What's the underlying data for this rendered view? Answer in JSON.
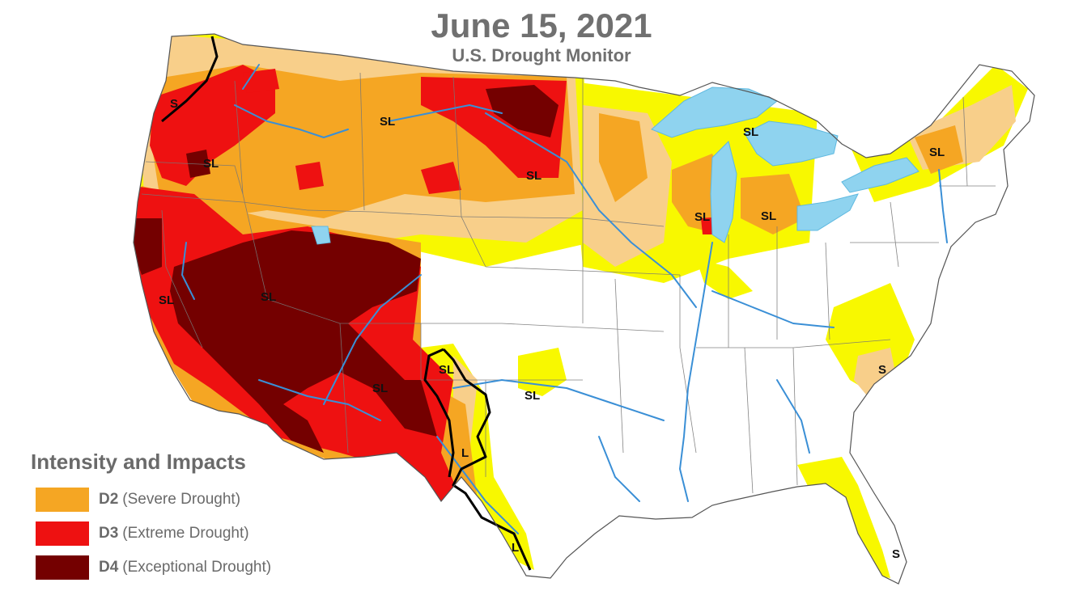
{
  "header": {
    "title": "June 15, 2021",
    "subtitle": "U.S. Drought Monitor"
  },
  "legend": {
    "heading": "Intensity and Impacts",
    "items": [
      {
        "code": "D2",
        "label": "(Severe Drought)",
        "color": "#f5a623"
      },
      {
        "code": "D3",
        "label": "(Extreme Drought)",
        "color": "#ee1111"
      },
      {
        "code": "D4",
        "label": "(Exceptional Drought)",
        "color": "#740000"
      }
    ]
  },
  "colors": {
    "d0_abnormally_dry": "#f8f800",
    "d1_moderate": "#f8cf8a",
    "d2": "#f5a623",
    "d3": "#ee1111",
    "d4": "#740000",
    "water": "#8fd3ef",
    "rivers": "#3a8fd6",
    "boundaries": "#777777"
  },
  "impact_labels": [
    "S",
    "SL",
    "SL",
    "SL",
    "SL",
    "SL",
    "SL",
    "SL",
    "SL",
    "SL",
    "SL",
    "SL",
    "SL",
    "L",
    "L",
    "S",
    "S"
  ]
}
